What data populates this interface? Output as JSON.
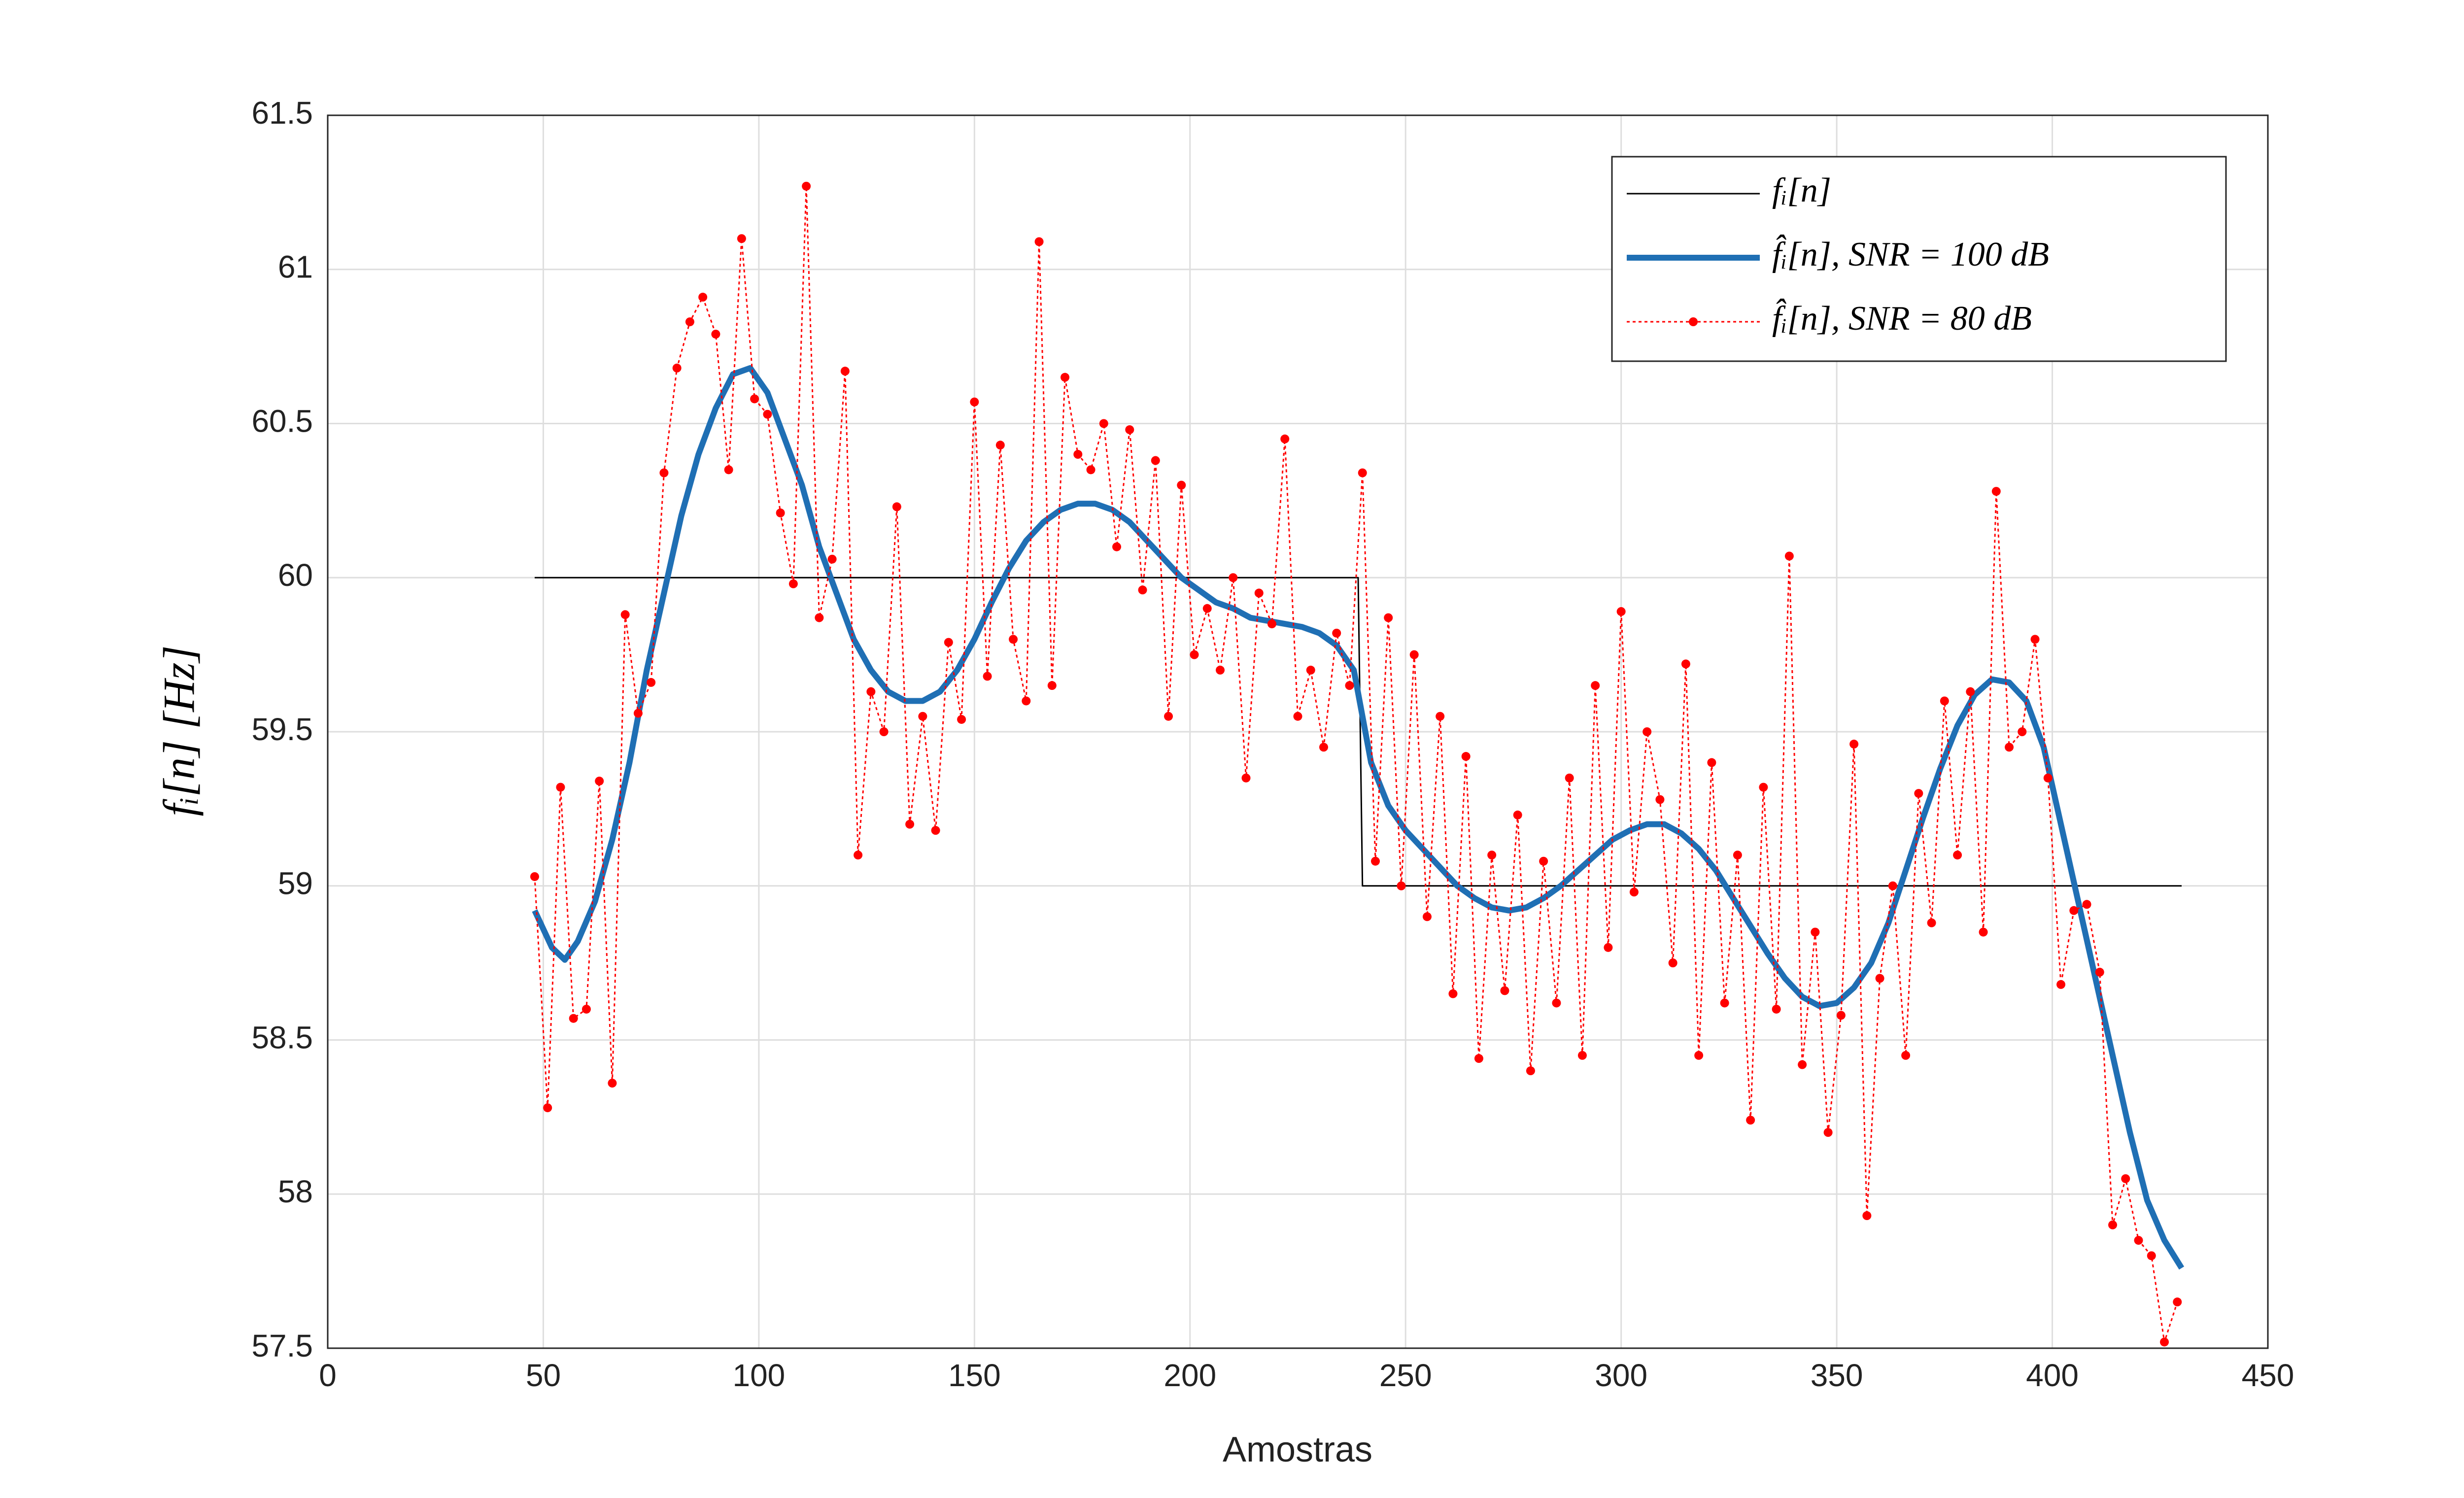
{
  "chart_data": {
    "type": "line",
    "x_label": "Amostras",
    "y_label": "fᵢ[n] [Hz]",
    "xlim": [
      0,
      450
    ],
    "xticks": [
      0,
      50,
      100,
      150,
      200,
      250,
      300,
      350,
      400,
      450
    ],
    "ylim": [
      57.5,
      61.5
    ],
    "yticks": [
      57.5,
      58,
      58.5,
      59,
      59.5,
      60,
      60.5,
      61,
      61.5
    ],
    "grid": true,
    "legend": "upper right",
    "series": [
      {
        "name": "fᵢ[n]",
        "color": "#000000",
        "linestyle": "solid",
        "x": [
          48,
          239,
          240,
          430
        ],
        "values": [
          60,
          60,
          59,
          59
        ]
      },
      {
        "name": "f̂ᵢ[n], SNR = 100 dB",
        "color": "#1f6fb4",
        "linestyle": "solid",
        "x": [
          48,
          52,
          55,
          58,
          62,
          66,
          70,
          74,
          78,
          82,
          86,
          90,
          94,
          98,
          102,
          106,
          110,
          114,
          118,
          122,
          126,
          130,
          134,
          138,
          142,
          146,
          150,
          154,
          158,
          162,
          166,
          170,
          174,
          178,
          182,
          186,
          190,
          194,
          198,
          202,
          206,
          210,
          214,
          218,
          222,
          226,
          230,
          234,
          238,
          240,
          242,
          246,
          250,
          254,
          258,
          262,
          266,
          270,
          274,
          278,
          282,
          286,
          290,
          294,
          298,
          302,
          306,
          310,
          314,
          318,
          322,
          326,
          330,
          334,
          338,
          342,
          346,
          350,
          354,
          358,
          362,
          366,
          370,
          374,
          378,
          382,
          386,
          390,
          394,
          398,
          402,
          406,
          410,
          414,
          418,
          422,
          426,
          430
        ],
        "values": [
          58.92,
          58.8,
          58.76,
          58.82,
          58.95,
          59.15,
          59.4,
          59.7,
          59.95,
          60.2,
          60.4,
          60.55,
          60.66,
          60.68,
          60.6,
          60.45,
          60.3,
          60.1,
          59.95,
          59.8,
          59.7,
          59.63,
          59.6,
          59.6,
          59.63,
          59.7,
          59.8,
          59.92,
          60.03,
          60.12,
          60.18,
          60.22,
          60.24,
          60.24,
          60.22,
          60.18,
          60.12,
          60.06,
          60.0,
          59.96,
          59.92,
          59.9,
          59.87,
          59.86,
          59.85,
          59.84,
          59.82,
          59.78,
          59.7,
          59.55,
          59.4,
          59.26,
          59.18,
          59.12,
          59.06,
          59.0,
          58.96,
          58.93,
          58.92,
          58.93,
          58.96,
          59.0,
          59.05,
          59.1,
          59.15,
          59.18,
          59.2,
          59.2,
          59.17,
          59.12,
          59.05,
          58.96,
          58.87,
          58.78,
          58.7,
          58.64,
          58.61,
          58.62,
          58.67,
          58.75,
          58.88,
          59.05,
          59.22,
          59.38,
          59.52,
          59.62,
          59.67,
          59.66,
          59.6,
          59.45,
          59.2,
          58.95,
          58.7,
          58.45,
          58.2,
          57.98,
          57.85,
          57.76
        ]
      },
      {
        "name": "f̂ᵢ[n], SNR = 80 dB",
        "color": "#ff0000",
        "linestyle": "dotted",
        "marker": "o",
        "x": [
          48,
          51,
          54,
          57,
          60,
          63,
          66,
          69,
          72,
          75,
          78,
          81,
          84,
          87,
          90,
          93,
          96,
          99,
          102,
          105,
          108,
          111,
          114,
          117,
          120,
          123,
          126,
          129,
          132,
          135,
          138,
          141,
          144,
          147,
          150,
          153,
          156,
          159,
          162,
          165,
          168,
          171,
          174,
          177,
          180,
          183,
          186,
          189,
          192,
          195,
          198,
          201,
          204,
          207,
          210,
          213,
          216,
          219,
          222,
          225,
          228,
          231,
          234,
          237,
          240,
          243,
          246,
          249,
          252,
          255,
          258,
          261,
          264,
          267,
          270,
          273,
          276,
          279,
          282,
          285,
          288,
          291,
          294,
          297,
          300,
          303,
          306,
          309,
          312,
          315,
          318,
          321,
          324,
          327,
          330,
          333,
          336,
          339,
          342,
          345,
          348,
          351,
          354,
          357,
          360,
          363,
          366,
          369,
          372,
          375,
          378,
          381,
          384,
          387,
          390,
          393,
          396,
          399,
          402,
          405,
          408,
          411,
          414,
          417,
          420,
          423,
          426,
          429
        ],
        "values": [
          59.03,
          58.28,
          59.32,
          58.57,
          58.6,
          59.34,
          58.36,
          59.88,
          59.56,
          59.66,
          60.34,
          60.68,
          60.83,
          60.91,
          60.79,
          60.35,
          61.1,
          60.58,
          60.53,
          60.21,
          59.98,
          61.27,
          59.87,
          60.06,
          60.67,
          59.1,
          59.63,
          59.5,
          60.23,
          59.2,
          59.55,
          59.18,
          59.79,
          59.54,
          60.57,
          59.68,
          60.43,
          59.8,
          59.6,
          61.09,
          59.65,
          60.65,
          60.4,
          60.35,
          60.5,
          60.1,
          60.48,
          59.96,
          60.38,
          59.55,
          60.3,
          59.75,
          59.9,
          59.7,
          60.0,
          59.35,
          59.95,
          59.85,
          60.45,
          59.55,
          59.7,
          59.45,
          59.82,
          59.65,
          60.34,
          59.08,
          59.87,
          59.0,
          59.75,
          58.9,
          59.55,
          58.65,
          59.42,
          58.44,
          59.1,
          58.66,
          59.23,
          58.4,
          59.08,
          58.62,
          59.35,
          58.45,
          59.65,
          58.8,
          59.89,
          58.98,
          59.5,
          59.28,
          58.75,
          59.72,
          58.45,
          59.4,
          58.62,
          59.1,
          58.24,
          59.32,
          58.6,
          60.07,
          58.42,
          58.85,
          58.2,
          58.58,
          59.46,
          57.93,
          58.7,
          59.0,
          58.45,
          59.3,
          58.88,
          59.6,
          59.1,
          59.63,
          58.85,
          60.28,
          59.45,
          59.5,
          59.8,
          59.35,
          58.68,
          58.92,
          58.94,
          58.72,
          57.9,
          58.05,
          57.85,
          57.8,
          57.52,
          57.65
        ]
      }
    ]
  }
}
